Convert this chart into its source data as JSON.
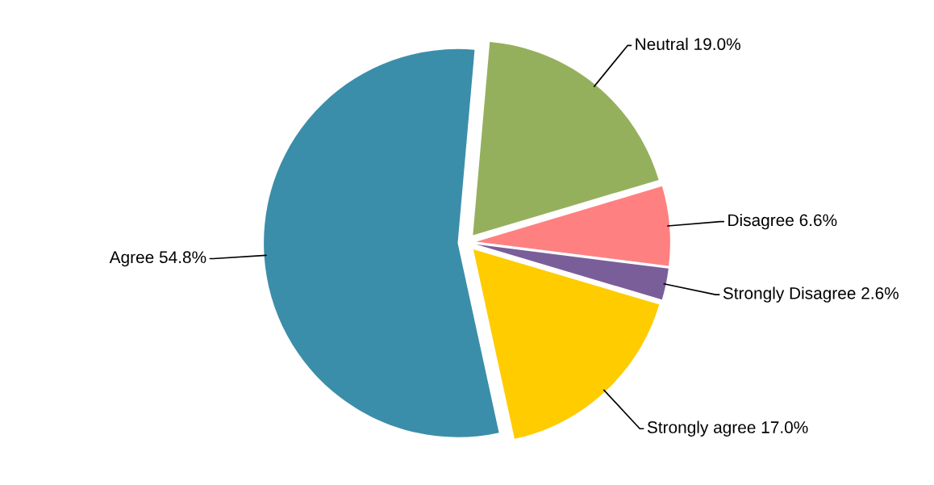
{
  "chart_data": {
    "type": "pie",
    "categories": [
      "Neutral",
      "Disagree",
      "Strongly Disagree",
      "Strongly agree",
      "Agree"
    ],
    "values": [
      19.0,
      6.6,
      2.6,
      17.0,
      54.8
    ],
    "colors": [
      "#95b05d",
      "#ff8080",
      "#7a5e9a",
      "#ffcc00",
      "#3b8ea9"
    ],
    "value_labels": [
      "19.0%",
      "6.6%",
      "2.6%",
      "17.0%",
      "54.8%"
    ]
  }
}
